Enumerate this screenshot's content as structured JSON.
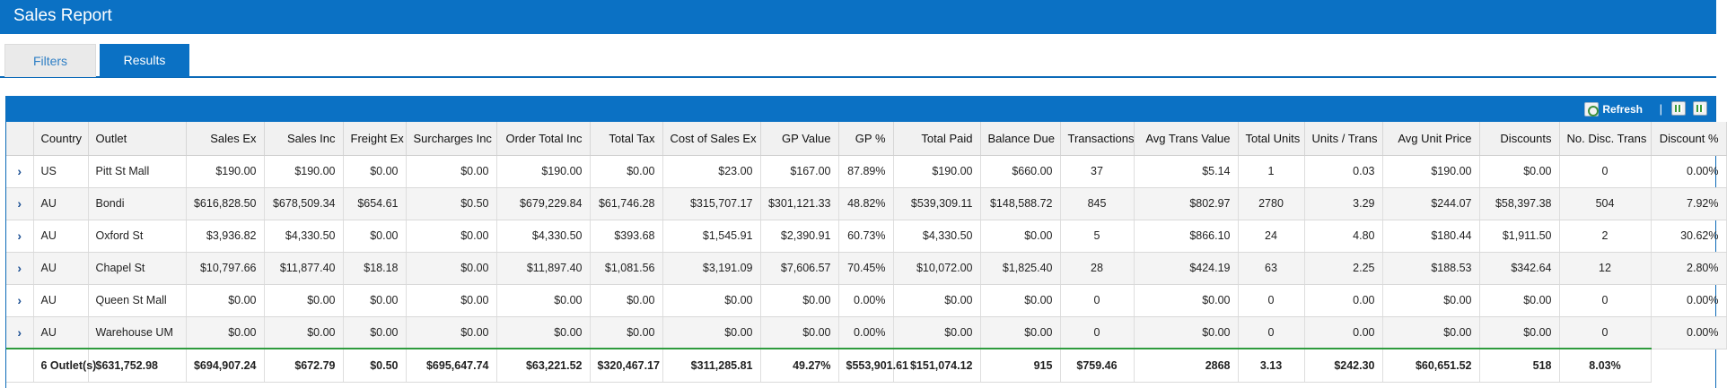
{
  "app": {
    "title": "Sales Report"
  },
  "tabs": [
    {
      "label": "Filters",
      "active": false
    },
    {
      "label": "Results",
      "active": true
    }
  ],
  "toolbar": {
    "refresh_label": "Refresh",
    "separator": "|",
    "icons": [
      "refresh-icon",
      "export-excel-icon",
      "export-csv-icon"
    ]
  },
  "columns": [
    "",
    "Country",
    "Outlet",
    "Sales Ex",
    "Sales Inc",
    "Freight Ex",
    "Surcharges Inc",
    "Order Total Inc",
    "Total Tax",
    "Cost of Sales Ex",
    "GP Value",
    "GP %",
    "Total Paid",
    "Balance Due",
    "Transactions",
    "Avg Trans Value",
    "Total Units",
    "Units / Trans",
    "Avg Unit Price",
    "Discounts",
    "No. Disc. Trans",
    "Discount %"
  ],
  "rows": [
    [
      "US",
      "Pitt St Mall",
      "$190.00",
      "$190.00",
      "$0.00",
      "$0.00",
      "$190.00",
      "$0.00",
      "$23.00",
      "$167.00",
      "87.89%",
      "$190.00",
      "$660.00",
      "37",
      "$5.14",
      "1",
      "0.03",
      "$190.00",
      "$0.00",
      "0",
      "0.00%"
    ],
    [
      "AU",
      "Bondi",
      "$616,828.50",
      "$678,509.34",
      "$654.61",
      "$0.50",
      "$679,229.84",
      "$61,746.28",
      "$315,707.17",
      "$301,121.33",
      "48.82%",
      "$539,309.11",
      "$148,588.72",
      "845",
      "$802.97",
      "2780",
      "3.29",
      "$244.07",
      "$58,397.38",
      "504",
      "7.92%"
    ],
    [
      "AU",
      "Oxford St",
      "$3,936.82",
      "$4,330.50",
      "$0.00",
      "$0.00",
      "$4,330.50",
      "$393.68",
      "$1,545.91",
      "$2,390.91",
      "60.73%",
      "$4,330.50",
      "$0.00",
      "5",
      "$866.10",
      "24",
      "4.80",
      "$180.44",
      "$1,911.50",
      "2",
      "30.62%"
    ],
    [
      "AU",
      "Chapel St",
      "$10,797.66",
      "$11,877.40",
      "$18.18",
      "$0.00",
      "$11,897.40",
      "$1,081.56",
      "$3,191.09",
      "$7,606.57",
      "70.45%",
      "$10,072.00",
      "$1,825.40",
      "28",
      "$424.19",
      "63",
      "2.25",
      "$188.53",
      "$342.64",
      "12",
      "2.80%"
    ],
    [
      "AU",
      "Queen St Mall",
      "$0.00",
      "$0.00",
      "$0.00",
      "$0.00",
      "$0.00",
      "$0.00",
      "$0.00",
      "$0.00",
      "0.00%",
      "$0.00",
      "$0.00",
      "0",
      "$0.00",
      "0",
      "0.00",
      "$0.00",
      "$0.00",
      "0",
      "0.00%"
    ],
    [
      "AU",
      "Warehouse UM",
      "$0.00",
      "$0.00",
      "$0.00",
      "$0.00",
      "$0.00",
      "$0.00",
      "$0.00",
      "$0.00",
      "0.00%",
      "$0.00",
      "$0.00",
      "0",
      "$0.00",
      "0",
      "0.00",
      "$0.00",
      "$0.00",
      "0",
      "0.00%"
    ]
  ],
  "totals": [
    "",
    "6 Outlet(s)",
    "$631,752.98",
    "$694,907.24",
    "$672.79",
    "$0.50",
    "$695,647.74",
    "$63,221.52",
    "$320,467.17",
    "$311,285.81",
    "49.27%",
    "$553,901.61",
    "$151,074.12",
    "915",
    "$759.46",
    "2868",
    "3.13",
    "$242.30",
    "$60,651.52",
    "518",
    "8.03%"
  ],
  "expand_glyph": "›"
}
